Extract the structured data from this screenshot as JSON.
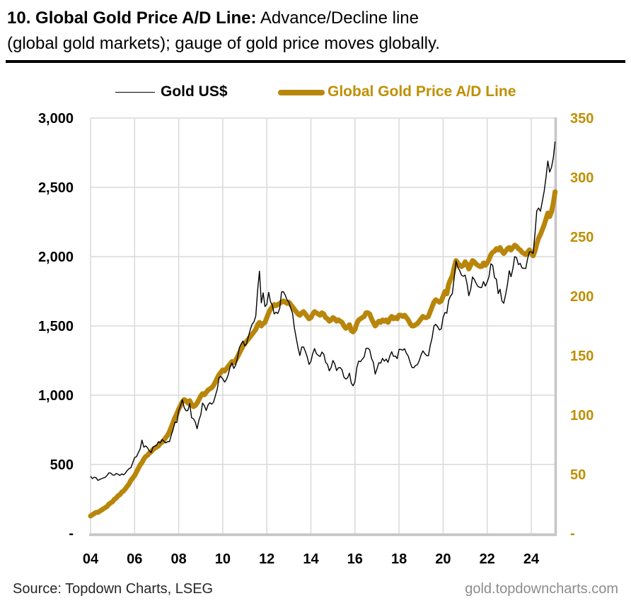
{
  "title": {
    "bold": "10. Global Gold Price A/D Line:",
    "regular_line1": " Advance/Decline line",
    "line2": "(global gold markets); gauge of gold price moves globally."
  },
  "legend": {
    "series1_label": "Gold US$",
    "series2_label": "Global Gold Price A/D Line"
  },
  "footer": {
    "source": "Source: Topdown Charts, LSEG",
    "website": "gold.topdowncharts.com"
  },
  "colors": {
    "gold_line": "#B8860B",
    "gold_text": "#BF8F00",
    "black_line": "#000000",
    "gridline": "#D9D9D9",
    "axis_line": "#C6C6C6",
    "source_text": "#262626",
    "website_text": "#8C8C8C"
  },
  "chart_data": {
    "type": "line",
    "title": "Global Gold Price A/D Line vs Gold US$",
    "x_unit": "monthly, Jan 2004 - Feb 2025",
    "x_tick_labels": [
      "04",
      "06",
      "08",
      "10",
      "12",
      "14",
      "16",
      "18",
      "20",
      "22",
      "24"
    ],
    "left_axis": {
      "label": "Gold US$",
      "min": 0,
      "max": 3000,
      "step": 500,
      "tick_labels": [
        "3,000",
        "2,500",
        "2,000",
        "1,500",
        "1,000",
        "500",
        "-"
      ]
    },
    "right_axis": {
      "label": "Global Gold Price A/D Line",
      "min": 0,
      "max": 350,
      "step": 50,
      "tick_labels": [
        "350",
        "300",
        "250",
        "200",
        "150",
        "100",
        "50",
        "-"
      ]
    },
    "grid": true,
    "legend_position": "top",
    "series": [
      {
        "name": "Gold US$",
        "axis": "left",
        "color": "#000000",
        "width": 1.4,
        "values": [
          415,
          398,
          408,
          404,
          385,
          392,
          398,
          403,
          407,
          422,
          440,
          438,
          424,
          423,
          435,
          429,
          421,
          432,
          425,
          438,
          457,
          470,
          477,
          513,
          550,
          556,
          585,
          611,
          676,
          625,
          634,
          621,
          598,
          586,
          627,
          632,
          640,
          665,
          655,
          680,
          667,
          655,
          666,
          665,
          713,
          755,
          806,
          803,
          890,
          923,
          968,
          910,
          888,
          890,
          940,
          838,
          830,
          807,
          758,
          820,
          858,
          943,
          924,
          890,
          929,
          946,
          935,
          950,
          997,
          1043,
          1127,
          1135,
          1118,
          1095,
          1113,
          1149,
          1205,
          1233,
          1193,
          1216,
          1271,
          1342,
          1370,
          1391,
          1356,
          1373,
          1424,
          1474,
          1512,
          1529,
          1573,
          1758,
          1895,
          1666,
          1739,
          1640,
          1656,
          1743,
          1674,
          1650,
          1586,
          1599,
          1590,
          1626,
          1745,
          1747,
          1722,
          1688,
          1671,
          1628,
          1593,
          1487,
          1414,
          1343,
          1286,
          1347,
          1348,
          1316,
          1276,
          1222,
          1244,
          1301,
          1336,
          1299,
          1288,
          1279,
          1311,
          1296,
          1237,
          1223,
          1176,
          1200,
          1250,
          1227,
          1178,
          1198,
          1199,
          1182,
          1130,
          1117,
          1125,
          1159,
          1086,
          1068,
          1098,
          1200,
          1246,
          1242,
          1260,
          1276,
          1337,
          1340,
          1327,
          1266,
          1236,
          1152,
          1192,
          1234,
          1231,
          1266,
          1246,
          1260,
          1237,
          1283,
          1314,
          1280,
          1282,
          1264,
          1331,
          1330,
          1325,
          1335,
          1303,
          1282,
          1238,
          1201,
          1198,
          1215,
          1221,
          1250,
          1292,
          1320,
          1301,
          1286,
          1284,
          1359,
          1413,
          1499,
          1511,
          1495,
          1471,
          1479,
          1561,
          1597,
          1592,
          1683,
          1716,
          1732,
          1843,
          1969,
          1922,
          1900,
          1866,
          1858,
          1867,
          1808,
          1718,
          1762,
          1853,
          1835,
          1807,
          1784,
          1778,
          1777,
          1820,
          1787,
          1817,
          1856,
          1948,
          1937,
          1848,
          1837,
          1733,
          1765,
          1681,
          1664,
          1725,
          1797,
          1898,
          1855,
          1913,
          2000,
          1992,
          1943,
          1951,
          1918,
          1916,
          1915,
          1984,
          2034,
          2034,
          2023,
          2160,
          2330,
          2351,
          2327,
          2398,
          2470,
          2570,
          2690,
          2610,
          2644,
          2710,
          2830
        ]
      },
      {
        "name": "Global Gold Price A/D Line",
        "axis": "right",
        "color": "#B8860B",
        "width": 7,
        "values": [
          15,
          16,
          17,
          18,
          18,
          19,
          20,
          21,
          22,
          23,
          25,
          26,
          27,
          29,
          30,
          32,
          33,
          35,
          36,
          38,
          40,
          42,
          45,
          47,
          49,
          52,
          55,
          58,
          60,
          63,
          65,
          66,
          68,
          69,
          71,
          72,
          73,
          74,
          76,
          77,
          79,
          81,
          83,
          86,
          90,
          94,
          98,
          101,
          105,
          108,
          111,
          113,
          112,
          110,
          112,
          109,
          107,
          108,
          110,
          113,
          116,
          118,
          117,
          119,
          121,
          122,
          123,
          125,
          128,
          131,
          134,
          136,
          138,
          137,
          139,
          141,
          143,
          145,
          144,
          146,
          149,
          152,
          155,
          158,
          160,
          162,
          164,
          166,
          168,
          170,
          172,
          176,
          178,
          175,
          177,
          178,
          182,
          186,
          189,
          191,
          193,
          192,
          193,
          194,
          195,
          196,
          195,
          194,
          195,
          193,
          191,
          189,
          187,
          185,
          184,
          186,
          187,
          185,
          183,
          181,
          182,
          185,
          187,
          186,
          185,
          184,
          186,
          185,
          182,
          181,
          179,
          180,
          182,
          181,
          179,
          180,
          179,
          178,
          175,
          173,
          174,
          176,
          171,
          170,
          172,
          177,
          180,
          181,
          182,
          183,
          186,
          186,
          185,
          181,
          178,
          175,
          177,
          179,
          178,
          180,
          179,
          180,
          178,
          181,
          183,
          181,
          182,
          181,
          184,
          184,
          183,
          184,
          182,
          180,
          177,
          175,
          175,
          176,
          177,
          179,
          181,
          183,
          182,
          182,
          183,
          187,
          191,
          195,
          197,
          196,
          195,
          196,
          200,
          204,
          202,
          210,
          214,
          217,
          224,
          230,
          228,
          226,
          225,
          226,
          229,
          227,
          223,
          226,
          230,
          229,
          227,
          226,
          225,
          225,
          228,
          226,
          228,
          231,
          235,
          237,
          238,
          240,
          239,
          241,
          238,
          236,
          238,
          240,
          241,
          239,
          241,
          243,
          242,
          240,
          239,
          237,
          236,
          235,
          237,
          239,
          236,
          234,
          238,
          244,
          249,
          252,
          256,
          260,
          265,
          270,
          267,
          271,
          278,
          288
        ]
      }
    ]
  }
}
